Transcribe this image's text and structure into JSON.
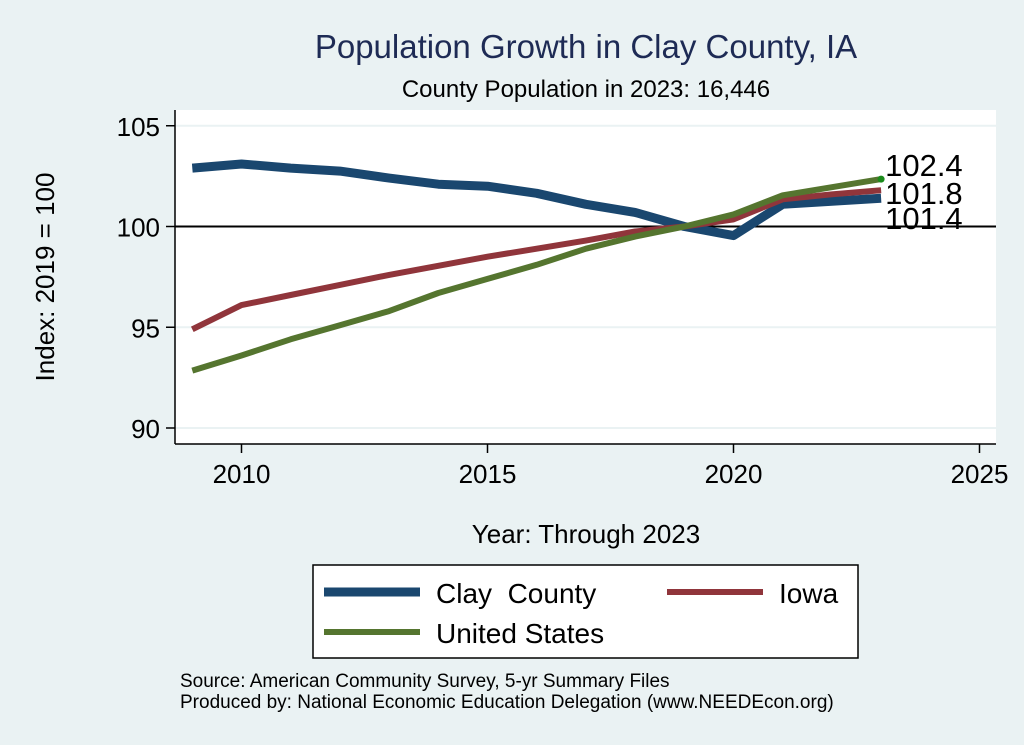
{
  "chart_data": {
    "type": "line",
    "title": "Population Growth in Clay County, IA",
    "subtitle": "County Population in 2023: 16,446",
    "xlabel": "Year: Through 2023",
    "ylabel": "Index: 2019 = 100",
    "xlim": [
      2009,
      2025
    ],
    "ylim": [
      90,
      105
    ],
    "x_ticks": [
      2010,
      2015,
      2020,
      2025
    ],
    "x_tick_labels": [
      "2010",
      "2015",
      "2020",
      "2025"
    ],
    "y_ticks": [
      90,
      95,
      100,
      105
    ],
    "y_tick_labels": [
      "90",
      "95",
      "100",
      "105"
    ],
    "reference_line": 100,
    "grid": true,
    "x": [
      2009,
      2010,
      2011,
      2012,
      2013,
      2014,
      2015,
      2016,
      2017,
      2018,
      2019,
      2020,
      2021,
      2022,
      2023
    ],
    "series": [
      {
        "name": "Clay  County",
        "color": "#1a476f",
        "values": [
          102.9,
          103.1,
          102.9,
          102.75,
          102.4,
          102.1,
          102.0,
          101.65,
          101.1,
          100.7,
          100.0,
          99.55,
          101.1,
          101.25,
          101.4
        ],
        "end_label": "101.4"
      },
      {
        "name": "Iowa",
        "color": "#90353b",
        "values": [
          94.9,
          96.1,
          96.6,
          97.1,
          97.6,
          98.05,
          98.5,
          98.9,
          99.3,
          99.75,
          100.0,
          100.35,
          101.35,
          101.6,
          101.8
        ],
        "end_label": "101.8"
      },
      {
        "name": "United States",
        "color": "#55752f",
        "values": [
          92.85,
          93.6,
          94.4,
          95.1,
          95.8,
          96.7,
          97.4,
          98.1,
          98.9,
          99.5,
          100.0,
          100.6,
          101.55,
          101.95,
          102.35
        ],
        "end_label": "102.4"
      }
    ],
    "legend": {
      "placement": "bottom",
      "entries": [
        "Clay  County",
        "Iowa",
        "United States"
      ]
    },
    "footer": [
      "Source: American Community Survey, 5-yr Summary Files",
      "Produced by: National Economic Education Delegation (www.NEEDEcon.org)"
    ]
  }
}
